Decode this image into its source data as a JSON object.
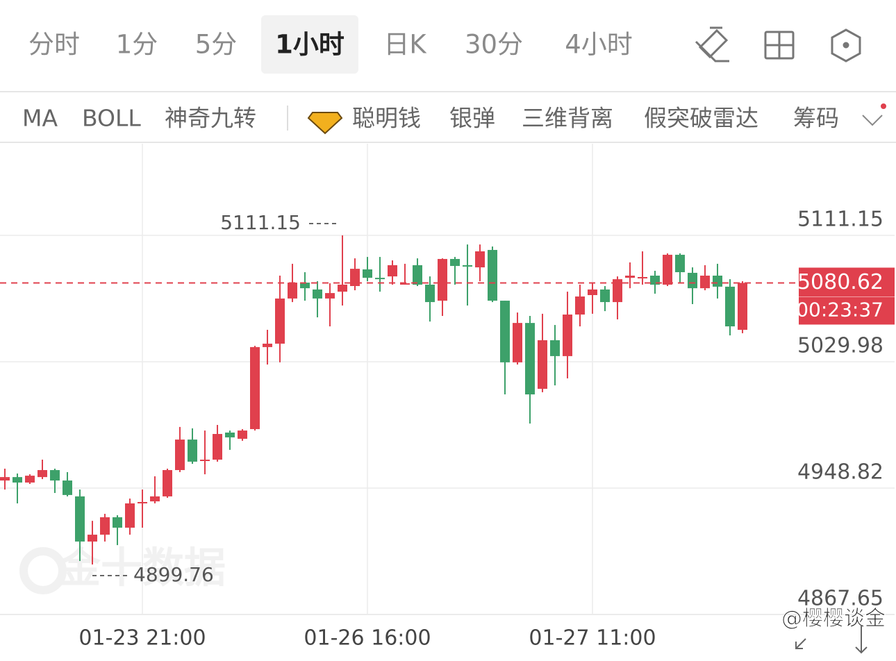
{
  "tabs": [
    "分时",
    "1分",
    "5分",
    "1小时",
    "日K",
    "30分",
    "4小时"
  ],
  "selected_tab": 3,
  "indicators": [
    "MA",
    "BOLL",
    "神奇九转",
    "聪明钱",
    "银弹",
    "三维背离",
    "假突破雷达",
    "筹码"
  ],
  "watermark": "金十数据",
  "credit": "@樱樱谈金",
  "chart_data": {
    "type": "candlestick",
    "categories": [
      null,
      null,
      null,
      null,
      null,
      null,
      null,
      null,
      null,
      null,
      null,
      "01-23 21:00",
      null,
      null,
      null,
      null,
      null,
      null,
      null,
      null,
      null,
      null,
      null,
      null,
      null,
      null,
      null,
      null,
      null,
      "01-26 16:00",
      null,
      null,
      null,
      null,
      null,
      null,
      null,
      null,
      null,
      null,
      null,
      null,
      null,
      null,
      null,
      null,
      null,
      "01-27 11:00",
      null,
      null,
      null,
      null,
      null,
      null,
      null,
      null,
      null,
      null,
      null,
      null
    ],
    "open": [
      4953.7,
      4955.9,
      4952.4,
      4955.9,
      4960.4,
      4953.7,
      4943.5,
      4914.5,
      4918.9,
      4930.1,
      4923.4,
      4939.0,
      4940.3,
      4943.5,
      4960.4,
      4980.0,
      4966.2,
      4967.1,
      4984.5,
      4980.5,
      4986.7,
      5039.4,
      5041.6,
      5070.6,
      5080.8,
      5076.4,
      5070.6,
      5075.0,
      5078.6,
      5089.3,
      5083.9,
      5084.8,
      5079.9,
      5092.0,
      5079.5,
      5069.2,
      5096.0,
      5092.0,
      5090.6,
      5101.8,
      5069.2,
      5029.6,
      5054.9,
      5012.6,
      5043.8,
      5033.6,
      5060.3,
      5072.8,
      5076.4,
      5068.3,
      5083.9,
      5083.5,
      5085.3,
      5079.5,
      5098.7,
      5087.1,
      5077.2,
      5085.3,
      5078.2,
      5050.5
    ],
    "high": [
      4961.3,
      4958.2,
      4957.7,
      4967.1,
      4961.3,
      4959.1,
      4947.9,
      4927.8,
      4932.3,
      4931.4,
      4942.1,
      4947.9,
      4956.4,
      4961.3,
      4988.1,
      4987.2,
      4985.8,
      4989.4,
      4985.8,
      4986.7,
      5040.2,
      5050.5,
      5085.3,
      5092.9,
      5087.5,
      5081.7,
      5080.4,
      5111.15,
      5096.4,
      5097.3,
      5097.3,
      5095.1,
      5092.9,
      5096.4,
      5084.8,
      5096.4,
      5097.3,
      5105.3,
      5105.3,
      5104.0,
      5069.2,
      5061.6,
      5059.4,
      5060.8,
      5053.6,
      5075.0,
      5079.5,
      5080.4,
      5078.6,
      5084.8,
      5093.8,
      5100.9,
      5088.4,
      5099.6,
      5099.6,
      5090.6,
      5092.0,
      5092.9,
      5083.0,
      5081.7
    ],
    "low": [
      4947.9,
      4939.0,
      4951.5,
      4954.6,
      4945.7,
      4943.5,
      4902.0,
      4899.76,
      4914.5,
      4912.2,
      4918.9,
      4923.4,
      4939.0,
      4942.6,
      4959.1,
      4964.4,
      4957.7,
      4965.8,
      4973.4,
      4979.2,
      4985.8,
      5028.2,
      5029.6,
      5068.3,
      5069.2,
      5058.5,
      5052.7,
      5066.1,
      5075.9,
      5081.7,
      5075.0,
      5079.5,
      5079.5,
      5078.6,
      5055.8,
      5059.4,
      5079.5,
      5066.1,
      5081.7,
      5068.3,
      5009.0,
      5028.2,
      4990.3,
      5010.4,
      5014.8,
      5019.3,
      5052.7,
      5060.8,
      5062.5,
      5057.2,
      5077.2,
      5079.5,
      5073.7,
      5078.6,
      5080.8,
      5067.0,
      5075.9,
      5070.6,
      5046.9,
      5048.3
    ],
    "close": [
      4955.9,
      4952.4,
      4956.8,
      4960.4,
      4953.7,
      4944.4,
      4914.5,
      4918.9,
      4930.1,
      4923.4,
      4939.0,
      4939.9,
      4943.5,
      4960.4,
      4980.0,
      4965.8,
      4967.1,
      4983.6,
      4981.4,
      4985.8,
      5039.4,
      5041.6,
      5070.6,
      5080.8,
      5077.2,
      5070.6,
      5074.1,
      5079.5,
      5089.7,
      5083.9,
      5083.5,
      5092.0,
      5080.4,
      5079.5,
      5068.3,
      5096.0,
      5091.5,
      5091.1,
      5100.9,
      5069.2,
      5029.6,
      5054.9,
      5009.0,
      5043.8,
      5033.6,
      5060.3,
      5071.9,
      5076.4,
      5068.3,
      5083.0,
      5085.3,
      5084.4,
      5079.5,
      5098.7,
      5087.5,
      5077.2,
      5085.3,
      5078.2,
      5052.7,
      5080.62
    ],
    "up_color": "#e0404d",
    "down_color": "#3da16a",
    "ylim": [
      4867.65,
      5170.02
    ],
    "yticks": [
      5111.15,
      5029.98,
      4948.82,
      4867.65
    ],
    "grid": true,
    "countdown": "00:23:37"
  }
}
